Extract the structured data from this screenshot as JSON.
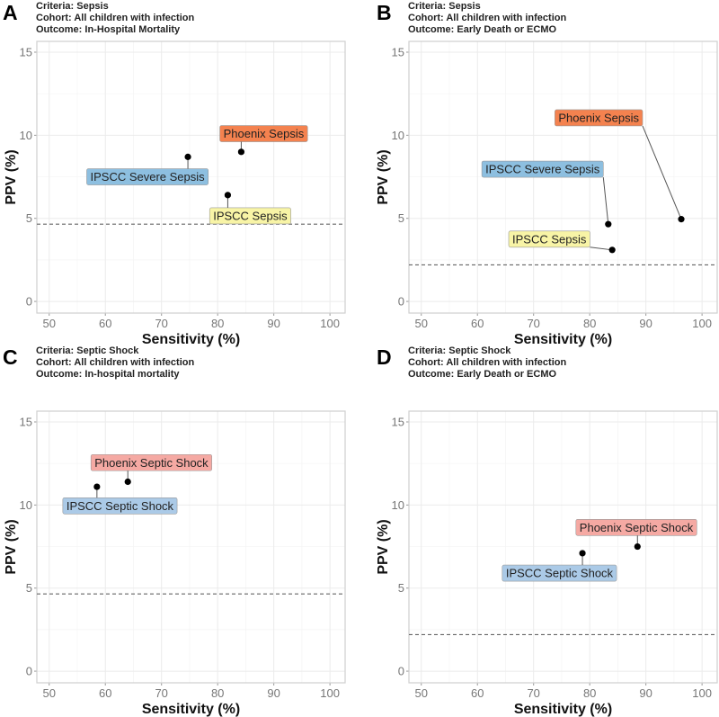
{
  "chart_data": [
    {
      "type": "scatter",
      "panel": "A",
      "subtitle": [
        "Criteria: Sepsis",
        "Cohort: All children with infection",
        "Outcome: In-Hospital Mortality"
      ],
      "xlabel": "Sensitivity (%)",
      "ylabel": "PPV (%)",
      "xlim": [
        47.8,
        102.7
      ],
      "ylim": [
        -0.7,
        15.65
      ],
      "xticks": [
        50,
        60,
        70,
        80,
        90,
        100
      ],
      "yticks": [
        0,
        5,
        10,
        15
      ],
      "grid": true,
      "reference_line": 4.65,
      "points": [
        {
          "name": "Phoenix Sepsis",
          "x": 84.2,
          "y": 9.0,
          "color": "#f4824f",
          "label_x": 88.2,
          "label_y": 10.1
        },
        {
          "name": "IPSCC Severe Sepsis",
          "x": 74.7,
          "y": 8.7,
          "color": "#8dbfe0",
          "label_x": 67.5,
          "label_y": 7.5
        },
        {
          "name": "IPSCC Sepsis",
          "x": 81.8,
          "y": 6.4,
          "color": "#f8f4a6",
          "label_x": 85.8,
          "label_y": 5.15
        }
      ]
    },
    {
      "type": "scatter",
      "panel": "B",
      "subtitle": [
        "Criteria: Sepsis",
        "Cohort: All children with infection",
        "Outcome: Early Death or ECMO"
      ],
      "xlabel": "Sensitivity (%)",
      "ylabel": "PPV (%)",
      "xlim": [
        47.8,
        102.7
      ],
      "ylim": [
        -0.7,
        15.65
      ],
      "xticks": [
        50,
        60,
        70,
        80,
        90,
        100
      ],
      "yticks": [
        0,
        5,
        10,
        15
      ],
      "grid": true,
      "reference_line": 2.2,
      "points": [
        {
          "name": "Phoenix Sepsis",
          "x": 96.3,
          "y": 4.95,
          "color": "#f4824f",
          "label_x": 81.6,
          "label_y": 11.05
        },
        {
          "name": "IPSCC Severe Sepsis",
          "x": 83.3,
          "y": 4.65,
          "color": "#8dbfe0",
          "label_x": 71.6,
          "label_y": 7.96
        },
        {
          "name": "IPSCC Sepsis",
          "x": 84.0,
          "y": 3.1,
          "color": "#f8f4a6",
          "label_x": 72.8,
          "label_y": 3.75
        }
      ]
    },
    {
      "type": "scatter",
      "panel": "C",
      "subtitle": [
        "Criteria: Septic Shock",
        "Cohort: All children with infection",
        "Outcome: In-hospital mortality"
      ],
      "xlabel": "Sensitivity (%)",
      "ylabel": "PPV (%)",
      "xlim": [
        47.8,
        102.7
      ],
      "ylim": [
        -0.7,
        15.65
      ],
      "xticks": [
        50,
        60,
        70,
        80,
        90,
        100
      ],
      "yticks": [
        0,
        5,
        10,
        15
      ],
      "grid": true,
      "reference_line": 4.65,
      "points": [
        {
          "name": "Phoenix Septic Shock",
          "x": 64.0,
          "y": 11.4,
          "color": "#f5a9a3",
          "label_x": 68.2,
          "label_y": 12.55
        },
        {
          "name": "IPSCC Septic Shock",
          "x": 58.5,
          "y": 11.1,
          "color": "#abcae7",
          "label_x": 62.6,
          "label_y": 9.95
        }
      ]
    },
    {
      "type": "scatter",
      "panel": "D",
      "subtitle": [
        "Criteria: Septic Shock",
        "Cohort: All children with infection",
        "Outcome: Early Death or ECMO"
      ],
      "xlabel": "Sensitivity (%)",
      "ylabel": "PPV (%)",
      "xlim": [
        47.8,
        102.7
      ],
      "ylim": [
        -0.7,
        15.65
      ],
      "xticks": [
        50,
        60,
        70,
        80,
        90,
        100
      ],
      "yticks": [
        0,
        5,
        10,
        15
      ],
      "grid": true,
      "reference_line": 2.2,
      "points": [
        {
          "name": "Phoenix Septic Shock",
          "x": 88.5,
          "y": 7.5,
          "color": "#f5a9a3",
          "label_x": 88.3,
          "label_y": 8.65
        },
        {
          "name": "IPSCC Septic Shock",
          "x": 78.7,
          "y": 7.1,
          "color": "#abcae7",
          "label_x": 74.6,
          "label_y": 5.9
        }
      ]
    }
  ]
}
